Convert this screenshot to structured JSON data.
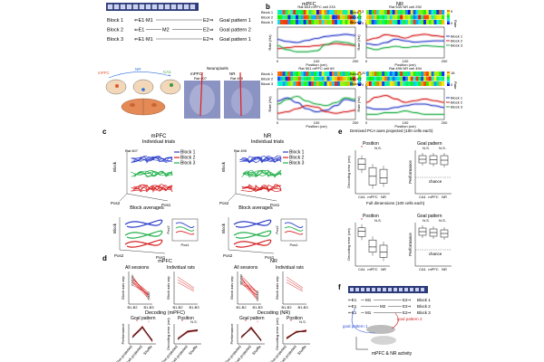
{
  "figure": {
    "panel_labels": [
      "a",
      "b",
      "c",
      "d",
      "e",
      "f"
    ],
    "a": {
      "maze_cells": 14,
      "blocks": [
        {
          "label": "Block 1",
          "e1": "E1",
          "m": "M1",
          "e2": "E2",
          "goal": "Goal pattern 1"
        },
        {
          "label": "Block 2",
          "e1": "E1",
          "m": "M2",
          "e2": "E2",
          "goal": "Goal pattern 2"
        },
        {
          "label": "Block 3",
          "e1": "E1",
          "m": "M1",
          "e2": "E2",
          "goal": "Goal pattern 1"
        }
      ],
      "regions": [
        "mPFC",
        "NR",
        "CA1"
      ],
      "neuropixels": "Neuropixels",
      "histology": [
        {
          "region": "mPFC",
          "rat": "Rat 607"
        },
        {
          "region": "NR",
          "rat": "Rat 495"
        }
      ]
    },
    "b": {
      "columns": [
        "mPFC",
        "NR"
      ],
      "cells": [
        {
          "id": "Rat 603 mPFC cell 233",
          "rate_max": 2.4,
          "colorbar_top": "3"
        },
        {
          "id": "Rat 549 NR cell 292",
          "rate_max": 9,
          "colorbar_top": "9"
        },
        {
          "id": "Rat 501 mPFC cell 69",
          "rate_max": 20,
          "colorbar_top": "20"
        },
        {
          "id": "Rat 495 NR cell 494",
          "rate_max": 18,
          "colorbar_top": "18"
        }
      ],
      "rate_label": "Rate (Hz)",
      "rate_short": "Rate",
      "position_label": "Position (cm)",
      "x_ticks": [
        "0",
        "100",
        "200"
      ],
      "legend": [
        "Block 1",
        "Block 2",
        "Block 3"
      ],
      "block_colors": [
        "#2b3cc9",
        "#d62222",
        "#22b04a"
      ]
    },
    "c": {
      "columns": [
        {
          "title": "mPFC",
          "rat": "Rat 607"
        },
        {
          "title": "NR",
          "rat": "Rat 495"
        }
      ],
      "individual": "Individual trials",
      "averages": "Block averages",
      "axes": [
        "Block",
        "Pos1",
        "Pos2"
      ]
    },
    "d": {
      "titles": [
        "mPFC",
        "NR"
      ],
      "all_sessions": "All sessions",
      "individual_rats": "Individual rats",
      "block_axis_sep": "Block axis sep",
      "b_ticks": [
        "B1-B2",
        "B1-B3"
      ],
      "decoding_titles": [
        "Decoding (mPFC)",
        "Decoding (NR)"
      ],
      "goal_pattern": "Goal pattern",
      "position": "Position",
      "performance": "Performance",
      "decoding_error": "Decoding error (cm)",
      "x_cats": [
        "Pos projected",
        "Block projected",
        "Shuffle"
      ],
      "sig": "*",
      "ns": "N.S."
    },
    "e": {
      "title1": "Demixed PCA axes projected (100 cells each)",
      "title2": "Full dimensions (100 cells each)",
      "position": "Position",
      "goal_pattern": "Goal pattern",
      "decoding_error": "Decoding error (cm)",
      "performance": "Performance",
      "cats": [
        "CA1",
        "mPFC",
        "NR"
      ],
      "chance": "chance",
      "ns": "N.S.",
      "sig": "*"
    },
    "f": {
      "maze_cells": 14,
      "rows": [
        {
          "e1": "E1",
          "m": "M1",
          "e2": "E2",
          "block": "Block 1"
        },
        {
          "e1": "E1",
          "m": "M2",
          "e2": "E2",
          "block": "Block 2"
        },
        {
          "e1": "E1",
          "m": "M1",
          "e2": "E2",
          "block": "Block 3"
        }
      ],
      "goal1": "goal pattern 1",
      "goal2": "goal pattern 2",
      "activity": "mPFC & NR activity"
    }
  },
  "chart_data": [
    {
      "type": "line",
      "panel": "b",
      "title": "Rat 603 mPFC cell 233",
      "xlabel": "Position (cm)",
      "ylabel": "Rate (Hz)",
      "xlim": [
        0,
        200
      ],
      "ylim": [
        0,
        3
      ],
      "x": [
        0,
        25,
        50,
        75,
        100,
        125,
        150,
        175,
        200
      ],
      "series": [
        {
          "name": "Block 1",
          "values": [
            1.8,
            1.6,
            1.5,
            1.7,
            1.9,
            2.1,
            2.2,
            2.3,
            2.2
          ]
        },
        {
          "name": "Block 2",
          "values": [
            0.9,
            1.0,
            1.1,
            1.1,
            1.2,
            1.3,
            1.4,
            1.3,
            1.2
          ]
        },
        {
          "name": "Block 3",
          "values": [
            1.2,
            0.8,
            0.6,
            0.6,
            0.7,
            1.3,
            1.6,
            1.5,
            1.3
          ]
        }
      ]
    },
    {
      "type": "line",
      "panel": "b",
      "title": "Rat 549 NR cell 292",
      "xlabel": "Position (cm)",
      "ylabel": "Rate (Hz)",
      "xlim": [
        0,
        200
      ],
      "ylim": [
        0,
        9
      ],
      "x": [
        0,
        25,
        50,
        75,
        100,
        125,
        150,
        175,
        200
      ],
      "series": [
        {
          "name": "Block 1",
          "values": [
            4.2,
            3.8,
            4.5,
            5.5,
            5.0,
            4.6,
            4.8,
            5.0,
            5.0
          ]
        },
        {
          "name": "Block 2",
          "values": [
            5.2,
            5.8,
            6.8,
            6.4,
            5.8,
            6.6,
            6.9,
            6.5,
            6.2
          ]
        },
        {
          "name": "Block 3",
          "values": [
            3.0,
            2.4,
            3.0,
            3.4,
            3.0,
            3.3,
            3.6,
            3.4,
            3.2
          ]
        }
      ]
    },
    {
      "type": "line",
      "panel": "b",
      "title": "Rat 501 mPFC cell 69",
      "xlabel": "Position (cm)",
      "ylabel": "Rate (Hz)",
      "xlim": [
        0,
        200
      ],
      "ylim": [
        0,
        20
      ],
      "x": [
        0,
        25,
        50,
        75,
        100,
        125,
        150,
        175,
        200
      ],
      "series": [
        {
          "name": "Block 1",
          "values": [
            12,
            14,
            11,
            7,
            5,
            6,
            9,
            13,
            12
          ]
        },
        {
          "name": "Block 2",
          "values": [
            4,
            5,
            7,
            9,
            8,
            5,
            4,
            5,
            6
          ]
        },
        {
          "name": "Block 3",
          "values": [
            10,
            13,
            15,
            12,
            10,
            9,
            11,
            14,
            13
          ]
        }
      ]
    },
    {
      "type": "line",
      "panel": "b",
      "title": "Rat 495 NR cell 494",
      "xlabel": "Position (cm)",
      "ylabel": "Rate (Hz)",
      "xlim": [
        0,
        200
      ],
      "ylim": [
        0,
        18
      ],
      "x": [
        0,
        25,
        50,
        75,
        100,
        125,
        150,
        175,
        200
      ],
      "series": [
        {
          "name": "Block 1",
          "values": [
            7,
            6,
            6,
            7,
            8,
            9,
            9,
            8,
            7
          ]
        },
        {
          "name": "Block 2",
          "values": [
            10,
            13,
            14,
            12,
            10,
            11,
            12,
            11,
            10
          ]
        },
        {
          "name": "Block 3",
          "values": [
            3,
            3,
            4,
            4,
            5,
            4,
            3,
            3,
            3
          ]
        }
      ]
    },
    {
      "type": "line",
      "panel": "d",
      "title": "Decoding (mPFC) Goal pattern",
      "ylabel": "Performance",
      "categories": [
        "Pos projected",
        "Block projected",
        "Shuffle"
      ],
      "ylim": [
        0.4,
        1.0
      ],
      "series": [
        {
          "name": "sessions",
          "values": [
            0.6,
            0.9,
            0.5
          ]
        }
      ]
    },
    {
      "type": "line",
      "panel": "d",
      "title": "Decoding (mPFC) Position",
      "ylabel": "Decoding error (cm)",
      "categories": [
        "Pos projected",
        "Block projected",
        "Shuffle"
      ],
      "ylim": [
        0,
        80
      ],
      "series": [
        {
          "name": "sessions",
          "values": [
            20,
            50,
            55
          ]
        }
      ]
    },
    {
      "type": "line",
      "panel": "d",
      "title": "Decoding (NR) Goal pattern",
      "ylabel": "Performance",
      "categories": [
        "Pos projected",
        "Block projected",
        "Shuffle"
      ],
      "ylim": [
        0.4,
        1.0
      ],
      "series": [
        {
          "name": "sessions",
          "values": [
            0.6,
            0.88,
            0.5
          ]
        }
      ]
    },
    {
      "type": "line",
      "panel": "d",
      "title": "Decoding (NR) Position",
      "ylabel": "Decoding error (cm)",
      "categories": [
        "Pos projected",
        "Block projected",
        "Shuffle"
      ],
      "ylim": [
        0,
        80
      ],
      "series": [
        {
          "name": "sessions",
          "values": [
            22,
            48,
            52
          ]
        }
      ]
    }
  ]
}
